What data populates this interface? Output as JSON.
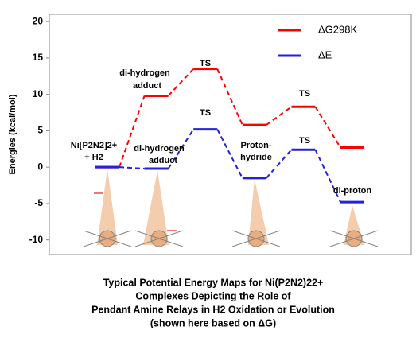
{
  "chart_data": {
    "type": "energy-levels",
    "ylabel": "Energies (kcal/mol)",
    "ylim": [
      -12,
      21
    ],
    "yticks": [
      -10,
      -5,
      0,
      5,
      10,
      15,
      20
    ],
    "categories": [
      null,
      null,
      null,
      null,
      null,
      null
    ],
    "series": [
      {
        "name": "ΔG298K",
        "color": "#ff0000",
        "values": [
          0,
          9.8,
          13.5,
          5.8,
          8.3,
          2.7
        ]
      },
      {
        "name": "ΔE",
        "color": "#2222dd",
        "values": [
          0,
          -0.2,
          5.2,
          -1.5,
          2.4,
          -4.8
        ]
      }
    ],
    "annotations": [
      "Ni[P2N2]2+",
      "+ H2",
      "di-hydrogen",
      "adduct",
      "TS",
      "di-hydrogen",
      "adduct",
      "TS",
      "Proton-",
      "hydride",
      "TS",
      "TS",
      "di-proton"
    ],
    "caption": [
      "Typical Potential Energy Maps for Ni(P2N2)22+",
      "Complexes Depicting the Role of",
      "Pendant Amine Relays in H2 Oxidation or Evolution",
      "(shown here based on ΔG)"
    ]
  }
}
